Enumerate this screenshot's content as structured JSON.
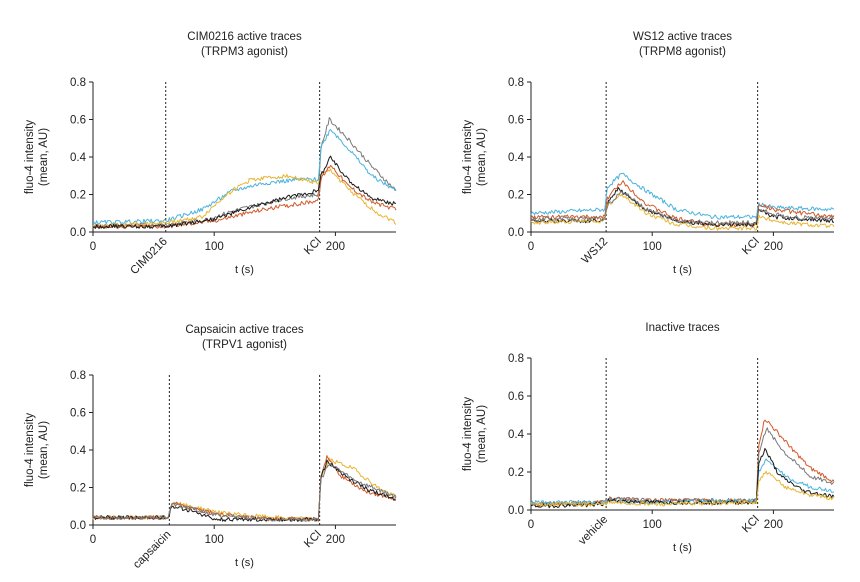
{
  "chart_data": [
    {
      "type": "line",
      "title": [
        "CIM0216 active traces",
        "(TRPM3 agonist)"
      ],
      "xlabel": "t (s)",
      "ylabel": [
        "fluo-4 intensity",
        "(mean, AU)"
      ],
      "xlim": [
        0,
        250
      ],
      "ylim": [
        0,
        0.8
      ],
      "xticks": [
        0,
        100,
        200
      ],
      "yticks": [
        0.0,
        0.2,
        0.4,
        0.6,
        0.8
      ],
      "ytick_labels": [
        "0.0",
        "0.2",
        "0.4",
        "0.6",
        "0.8"
      ],
      "events": [
        {
          "label": "CIM0216",
          "x": 60,
          "rotate": true
        },
        {
          "label": "KCl",
          "x": 187,
          "rotate": true
        }
      ],
      "series": [
        {
          "name": "trace-grey",
          "color": "#7a7a7a",
          "points": [
            [
              0,
              0.03
            ],
            [
              60,
              0.04
            ],
            [
              90,
              0.06
            ],
            [
              120,
              0.12
            ],
            [
              160,
              0.18
            ],
            [
              186,
              0.2
            ],
            [
              188,
              0.45
            ],
            [
              195,
              0.6
            ],
            [
              210,
              0.5
            ],
            [
              230,
              0.35
            ],
            [
              250,
              0.22
            ]
          ]
        },
        {
          "name": "trace-blue",
          "color": "#4ab3dd",
          "points": [
            [
              0,
              0.05
            ],
            [
              60,
              0.06
            ],
            [
              90,
              0.12
            ],
            [
              115,
              0.22
            ],
            [
              140,
              0.26
            ],
            [
              170,
              0.28
            ],
            [
              186,
              0.28
            ],
            [
              188,
              0.45
            ],
            [
              196,
              0.55
            ],
            [
              210,
              0.45
            ],
            [
              230,
              0.3
            ],
            [
              250,
              0.22
            ]
          ]
        },
        {
          "name": "trace-yellow",
          "color": "#e8b634",
          "points": [
            [
              0,
              0.03
            ],
            [
              60,
              0.05
            ],
            [
              90,
              0.08
            ],
            [
              110,
              0.2
            ],
            [
              130,
              0.28
            ],
            [
              160,
              0.3
            ],
            [
              186,
              0.26
            ],
            [
              188,
              0.3
            ],
            [
              196,
              0.33
            ],
            [
              215,
              0.2
            ],
            [
              235,
              0.1
            ],
            [
              250,
              0.05
            ]
          ]
        },
        {
          "name": "trace-orange",
          "color": "#d25a2a",
          "points": [
            [
              0,
              0.03
            ],
            [
              60,
              0.03
            ],
            [
              100,
              0.06
            ],
            [
              140,
              0.12
            ],
            [
              170,
              0.15
            ],
            [
              186,
              0.17
            ],
            [
              188,
              0.28
            ],
            [
              196,
              0.36
            ],
            [
              210,
              0.25
            ],
            [
              230,
              0.16
            ],
            [
              250,
              0.12
            ]
          ]
        },
        {
          "name": "trace-black",
          "color": "#1a1a1a",
          "points": [
            [
              0,
              0.03
            ],
            [
              60,
              0.03
            ],
            [
              100,
              0.07
            ],
            [
              140,
              0.15
            ],
            [
              170,
              0.2
            ],
            [
              186,
              0.22
            ],
            [
              188,
              0.3
            ],
            [
              196,
              0.4
            ],
            [
              210,
              0.28
            ],
            [
              230,
              0.18
            ],
            [
              250,
              0.15
            ]
          ]
        }
      ]
    },
    {
      "type": "line",
      "title": [
        "WS12 active traces",
        "(TRPM8 agonist)"
      ],
      "xlabel": "t (s)",
      "ylabel": [
        "fluo-4 intensity",
        "(mean, AU)"
      ],
      "xlim": [
        0,
        250
      ],
      "ylim": [
        0,
        0.8
      ],
      "xticks": [
        0,
        100,
        200
      ],
      "yticks": [
        0.0,
        0.2,
        0.4,
        0.6,
        0.8
      ],
      "ytick_labels": [
        "0.0",
        "0.2",
        "0.4",
        "0.6",
        "0.8"
      ],
      "events": [
        {
          "label": "WS12",
          "x": 62,
          "rotate": true
        },
        {
          "label": "KCl",
          "x": 187,
          "rotate": true
        }
      ],
      "series": [
        {
          "name": "trace-blue",
          "color": "#4ab3dd",
          "points": [
            [
              0,
              0.1
            ],
            [
              61,
              0.12
            ],
            [
              63,
              0.24
            ],
            [
              75,
              0.31
            ],
            [
              95,
              0.22
            ],
            [
              120,
              0.12
            ],
            [
              150,
              0.08
            ],
            [
              186,
              0.08
            ],
            [
              188,
              0.15
            ],
            [
              200,
              0.13
            ],
            [
              250,
              0.12
            ]
          ]
        },
        {
          "name": "trace-orange",
          "color": "#d25a2a",
          "points": [
            [
              0,
              0.08
            ],
            [
              61,
              0.08
            ],
            [
              63,
              0.18
            ],
            [
              75,
              0.27
            ],
            [
              95,
              0.15
            ],
            [
              120,
              0.07
            ],
            [
              150,
              0.04
            ],
            [
              186,
              0.04
            ],
            [
              188,
              0.15
            ],
            [
              200,
              0.12
            ],
            [
              250,
              0.08
            ]
          ]
        },
        {
          "name": "trace-black",
          "color": "#1a1a1a",
          "points": [
            [
              0,
              0.06
            ],
            [
              61,
              0.06
            ],
            [
              63,
              0.15
            ],
            [
              72,
              0.23
            ],
            [
              95,
              0.12
            ],
            [
              120,
              0.06
            ],
            [
              150,
              0.04
            ],
            [
              186,
              0.04
            ],
            [
              188,
              0.12
            ],
            [
              200,
              0.08
            ],
            [
              250,
              0.06
            ]
          ]
        },
        {
          "name": "trace-yellow",
          "color": "#e8b634",
          "points": [
            [
              0,
              0.05
            ],
            [
              61,
              0.06
            ],
            [
              63,
              0.14
            ],
            [
              75,
              0.2
            ],
            [
              95,
              0.1
            ],
            [
              120,
              0.04
            ],
            [
              150,
              0.02
            ],
            [
              186,
              0.02
            ],
            [
              188,
              0.08
            ],
            [
              210,
              0.05
            ],
            [
              250,
              0.03
            ]
          ]
        },
        {
          "name": "trace-grey",
          "color": "#7a7a7a",
          "points": [
            [
              0,
              0.07
            ],
            [
              61,
              0.07
            ],
            [
              63,
              0.14
            ],
            [
              75,
              0.22
            ],
            [
              95,
              0.12
            ],
            [
              120,
              0.06
            ],
            [
              150,
              0.05
            ],
            [
              186,
              0.05
            ],
            [
              188,
              0.12
            ],
            [
              210,
              0.08
            ],
            [
              250,
              0.07
            ]
          ]
        }
      ]
    },
    {
      "type": "line",
      "title": [
        "Capsaicin active traces",
        "(TRPV1 agonist)"
      ],
      "xlabel": "t (s)",
      "ylabel": [
        "fluo-4 intensity",
        "(mean, AU)"
      ],
      "xlim": [
        0,
        250
      ],
      "ylim": [
        0,
        0.8
      ],
      "xticks": [
        0,
        100,
        200
      ],
      "yticks": [
        0.0,
        0.2,
        0.4,
        0.6,
        0.8
      ],
      "ytick_labels": [
        "0.0",
        "0.2",
        "0.4",
        "0.6",
        "0.8"
      ],
      "events": [
        {
          "label": "capsaicin",
          "x": 63,
          "rotate": true
        },
        {
          "label": "KCl",
          "x": 187,
          "rotate": true
        }
      ],
      "series": [
        {
          "name": "trace-yellow",
          "color": "#e8b634",
          "points": [
            [
              0,
              0.04
            ],
            [
              62,
              0.04
            ],
            [
              65,
              0.12
            ],
            [
              80,
              0.1
            ],
            [
              110,
              0.06
            ],
            [
              150,
              0.04
            ],
            [
              186,
              0.03
            ],
            [
              188,
              0.25
            ],
            [
              195,
              0.35
            ],
            [
              215,
              0.3
            ],
            [
              235,
              0.2
            ],
            [
              250,
              0.15
            ]
          ]
        },
        {
          "name": "trace-orange",
          "color": "#d25a2a",
          "points": [
            [
              0,
              0.04
            ],
            [
              62,
              0.04
            ],
            [
              65,
              0.12
            ],
            [
              80,
              0.09
            ],
            [
              110,
              0.05
            ],
            [
              150,
              0.03
            ],
            [
              186,
              0.03
            ],
            [
              188,
              0.25
            ],
            [
              193,
              0.36
            ],
            [
              205,
              0.26
            ],
            [
              225,
              0.18
            ],
            [
              250,
              0.14
            ]
          ]
        },
        {
          "name": "trace-black",
          "color": "#1a1a1a",
          "points": [
            [
              0,
              0.04
            ],
            [
              62,
              0.04
            ],
            [
              65,
              0.1
            ],
            [
              80,
              0.08
            ],
            [
              100,
              0.03
            ],
            [
              150,
              0.03
            ],
            [
              186,
              0.03
            ],
            [
              188,
              0.25
            ],
            [
              193,
              0.34
            ],
            [
              210,
              0.25
            ],
            [
              230,
              0.18
            ],
            [
              250,
              0.14
            ]
          ]
        },
        {
          "name": "trace-grey",
          "color": "#7a7a7a",
          "points": [
            [
              0,
              0.04
            ],
            [
              62,
              0.04
            ],
            [
              65,
              0.11
            ],
            [
              80,
              0.09
            ],
            [
              105,
              0.05
            ],
            [
              150,
              0.03
            ],
            [
              186,
              0.03
            ],
            [
              188,
              0.24
            ],
            [
              195,
              0.33
            ],
            [
              215,
              0.24
            ],
            [
              250,
              0.15
            ]
          ]
        }
      ]
    },
    {
      "type": "line",
      "title": [
        "Inactive traces"
      ],
      "xlabel": "t (s)",
      "ylabel": [
        "fluo-4 intensity",
        "(mean, AU)"
      ],
      "xlim": [
        0,
        250
      ],
      "ylim": [
        0,
        0.8
      ],
      "xticks": [
        0,
        100,
        200
      ],
      "yticks": [
        0.0,
        0.2,
        0.4,
        0.6,
        0.8
      ],
      "ytick_labels": [
        "0.0",
        "0.2",
        "0.4",
        "0.6",
        "0.8"
      ],
      "events": [
        {
          "label": "vehicle",
          "x": 62,
          "rotate": true
        },
        {
          "label": "KCl",
          "x": 187,
          "rotate": true
        }
      ],
      "series": [
        {
          "name": "trace-orange",
          "color": "#d25a2a",
          "points": [
            [
              0,
              0.03
            ],
            [
              61,
              0.04
            ],
            [
              64,
              0.06
            ],
            [
              100,
              0.05
            ],
            [
              186,
              0.05
            ],
            [
              188,
              0.35
            ],
            [
              193,
              0.48
            ],
            [
              210,
              0.36
            ],
            [
              230,
              0.22
            ],
            [
              250,
              0.15
            ]
          ]
        },
        {
          "name": "trace-grey",
          "color": "#7a7a7a",
          "points": [
            [
              0,
              0.03
            ],
            [
              61,
              0.04
            ],
            [
              64,
              0.06
            ],
            [
              100,
              0.05
            ],
            [
              186,
              0.05
            ],
            [
              188,
              0.3
            ],
            [
              194,
              0.43
            ],
            [
              210,
              0.3
            ],
            [
              230,
              0.18
            ],
            [
              250,
              0.14
            ]
          ]
        },
        {
          "name": "trace-blue",
          "color": "#4ab3dd",
          "points": [
            [
              0,
              0.04
            ],
            [
              61,
              0.04
            ],
            [
              64,
              0.05
            ],
            [
              100,
              0.04
            ],
            [
              186,
              0.05
            ],
            [
              188,
              0.2
            ],
            [
              194,
              0.26
            ],
            [
              210,
              0.18
            ],
            [
              230,
              0.12
            ],
            [
              250,
              0.1
            ]
          ]
        },
        {
          "name": "trace-black",
          "color": "#1a1a1a",
          "points": [
            [
              0,
              0.02
            ],
            [
              61,
              0.03
            ],
            [
              64,
              0.05
            ],
            [
              100,
              0.04
            ],
            [
              186,
              0.04
            ],
            [
              188,
              0.25
            ],
            [
              193,
              0.32
            ],
            [
              205,
              0.18
            ],
            [
              225,
              0.1
            ],
            [
              250,
              0.07
            ]
          ]
        },
        {
          "name": "trace-yellow",
          "color": "#e8b634",
          "points": [
            [
              0,
              0.03
            ],
            [
              61,
              0.03
            ],
            [
              64,
              0.04
            ],
            [
              100,
              0.03
            ],
            [
              186,
              0.04
            ],
            [
              188,
              0.15
            ],
            [
              194,
              0.2
            ],
            [
              210,
              0.12
            ],
            [
              230,
              0.08
            ],
            [
              250,
              0.06
            ]
          ]
        }
      ]
    }
  ]
}
